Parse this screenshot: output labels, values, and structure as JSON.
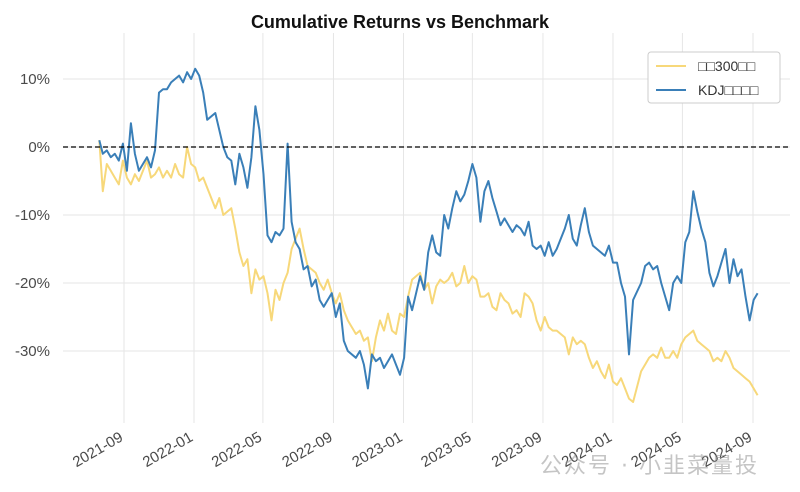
{
  "chart_data": {
    "type": "line",
    "title": "Cumulative Returns vs Benchmark",
    "xlabel": "",
    "ylabel": "",
    "ylim": [
      -40.5,
      16.8
    ],
    "xlim": [
      "2021-07-01",
      "2024-10-15"
    ],
    "grid": true,
    "legend_position": "upper right",
    "x_ticks": [
      "2021-09",
      "2022-01",
      "2022-05",
      "2022-09",
      "2023-01",
      "2023-05",
      "2023-09",
      "2024-01",
      "2024-05",
      "2024-09"
    ],
    "y_ticks": [
      10,
      0,
      -10,
      -20,
      -30
    ],
    "y_tick_labels": [
      "10%",
      "0%",
      "-10%",
      "-20%",
      "-30%"
    ],
    "reference_line": {
      "y": 0,
      "style": "dashed",
      "color": "#000000"
    },
    "series": [
      {
        "name": "□□300□□",
        "color": "#f7d87a",
        "x": [
          "2021-07-20",
          "2021-07-26",
          "2021-08-02",
          "2021-08-09",
          "2021-08-16",
          "2021-08-23",
          "2021-08-30",
          "2021-09-06",
          "2021-09-13",
          "2021-09-20",
          "2021-09-27",
          "2021-10-11",
          "2021-10-18",
          "2021-10-25",
          "2021-11-01",
          "2021-11-08",
          "2021-11-15",
          "2021-11-22",
          "2021-11-29",
          "2021-12-06",
          "2021-12-13",
          "2021-12-20",
          "2021-12-27",
          "2022-01-03",
          "2022-01-10",
          "2022-01-17",
          "2022-01-24",
          "2022-02-07",
          "2022-02-14",
          "2022-02-21",
          "2022-02-28",
          "2022-03-07",
          "2022-03-14",
          "2022-03-21",
          "2022-03-28",
          "2022-04-04",
          "2022-04-11",
          "2022-04-18",
          "2022-04-25",
          "2022-05-02",
          "2022-05-09",
          "2022-05-16",
          "2022-05-23",
          "2022-05-30",
          "2022-06-06",
          "2022-06-13",
          "2022-06-20",
          "2022-06-27",
          "2022-07-04",
          "2022-07-11",
          "2022-07-18",
          "2022-07-25",
          "2022-08-01",
          "2022-08-08",
          "2022-08-15",
          "2022-08-22",
          "2022-08-29",
          "2022-09-05",
          "2022-09-12",
          "2022-09-19",
          "2022-09-26",
          "2022-10-10",
          "2022-10-17",
          "2022-10-24",
          "2022-10-31",
          "2022-11-07",
          "2022-11-14",
          "2022-11-21",
          "2022-11-28",
          "2022-12-05",
          "2022-12-12",
          "2022-12-19",
          "2022-12-26",
          "2023-01-02",
          "2023-01-09",
          "2023-01-16",
          "2023-01-30",
          "2023-02-06",
          "2023-02-13",
          "2023-02-20",
          "2023-02-27",
          "2023-03-06",
          "2023-03-13",
          "2023-03-20",
          "2023-03-27",
          "2023-04-03",
          "2023-04-10",
          "2023-04-17",
          "2023-04-24",
          "2023-05-01",
          "2023-05-08",
          "2023-05-15",
          "2023-05-22",
          "2023-05-29",
          "2023-06-05",
          "2023-06-12",
          "2023-06-19",
          "2023-06-26",
          "2023-07-03",
          "2023-07-10",
          "2023-07-17",
          "2023-07-24",
          "2023-07-31",
          "2023-08-07",
          "2023-08-14",
          "2023-08-21",
          "2023-08-28",
          "2023-09-04",
          "2023-09-11",
          "2023-09-18",
          "2023-09-25",
          "2023-10-09",
          "2023-10-16",
          "2023-10-23",
          "2023-10-30",
          "2023-11-06",
          "2023-11-13",
          "2023-11-20",
          "2023-11-27",
          "2023-12-04",
          "2023-12-11",
          "2023-12-18",
          "2023-12-25",
          "2024-01-01",
          "2024-01-08",
          "2024-01-15",
          "2024-01-22",
          "2024-01-29",
          "2024-02-05",
          "2024-02-19",
          "2024-02-26",
          "2024-03-04",
          "2024-03-11",
          "2024-03-18",
          "2024-03-25",
          "2024-04-01",
          "2024-04-08",
          "2024-04-15",
          "2024-04-22",
          "2024-04-29",
          "2024-05-06",
          "2024-05-13",
          "2024-05-20",
          "2024-05-27",
          "2024-06-03",
          "2024-06-10",
          "2024-06-17",
          "2024-06-24",
          "2024-07-01",
          "2024-07-08",
          "2024-07-15",
          "2024-07-22",
          "2024-07-29",
          "2024-08-05",
          "2024-08-12",
          "2024-08-19",
          "2024-08-26",
          "2024-09-02",
          "2024-09-09"
        ],
        "values": [
          1.0,
          -6.5,
          -2.5,
          -3.5,
          -4.5,
          -5.5,
          -2.0,
          -4.5,
          -5.5,
          -4.0,
          -5.0,
          -2.0,
          -4.5,
          -4.0,
          -3.0,
          -4.5,
          -3.5,
          -4.5,
          -2.5,
          -4.0,
          -4.5,
          0.0,
          -2.5,
          -3.0,
          -5.0,
          -4.5,
          -6.0,
          -9.0,
          -7.5,
          -10.0,
          -9.5,
          -9.0,
          -12.0,
          -15.5,
          -17.5,
          -16.5,
          -21.5,
          -18.0,
          -19.5,
          -19.0,
          -21.5,
          -25.5,
          -21.0,
          -22.5,
          -20.0,
          -18.5,
          -15.0,
          -13.5,
          -12.0,
          -15.0,
          -17.5,
          -18.0,
          -18.5,
          -20.0,
          -21.0,
          -19.5,
          -21.5,
          -23.0,
          -21.5,
          -24.0,
          -25.5,
          -27.5,
          -27.0,
          -28.5,
          -28.0,
          -31.5,
          -28.0,
          -25.5,
          -27.0,
          -24.5,
          -27.0,
          -27.5,
          -24.5,
          -25.0,
          -22.0,
          -19.5,
          -18.5,
          -21.0,
          -20.0,
          -23.0,
          -20.5,
          -19.5,
          -20.0,
          -19.5,
          -18.5,
          -20.5,
          -20.0,
          -17.5,
          -20.0,
          -19.0,
          -19.5,
          -22.0,
          -22.0,
          -21.5,
          -23.5,
          -24.0,
          -21.5,
          -22.5,
          -23.0,
          -24.5,
          -24.0,
          -25.0,
          -21.5,
          -22.0,
          -23.0,
          -25.5,
          -27.0,
          -25.0,
          -26.5,
          -27.0,
          -27.0,
          -28.0,
          -30.5,
          -28.0,
          -29.0,
          -28.5,
          -29.0,
          -31.0,
          -32.5,
          -31.5,
          -33.0,
          -34.0,
          -32.0,
          -34.5,
          -35.0,
          -34.0,
          -35.5,
          -37.0,
          -37.5,
          -33.0,
          -32.0,
          -31.0,
          -30.5,
          -31.0,
          -29.5,
          -31.0,
          -31.0,
          -30.0,
          -31.0,
          -29.0,
          -28.0,
          -27.5,
          -27.0,
          -28.5,
          -29.0,
          -29.5,
          -30.0,
          -31.5,
          -31.0,
          -31.5,
          -30.0,
          -31.0,
          -32.5,
          -33.0,
          -33.5,
          -34.0,
          -34.5,
          -35.5,
          -36.5
        ]
      },
      {
        "name": "KDJ□□□□",
        "color": "#3a7fb8",
        "x": [
          "2021-07-20",
          "2021-07-26",
          "2021-08-02",
          "2021-08-09",
          "2021-08-16",
          "2021-08-23",
          "2021-08-30",
          "2021-09-06",
          "2021-09-13",
          "2021-09-20",
          "2021-09-27",
          "2021-10-11",
          "2021-10-18",
          "2021-10-25",
          "2021-11-01",
          "2021-11-08",
          "2021-11-15",
          "2021-11-22",
          "2021-11-29",
          "2021-12-06",
          "2021-12-13",
          "2021-12-20",
          "2021-12-27",
          "2022-01-03",
          "2022-01-10",
          "2022-01-17",
          "2022-01-24",
          "2022-02-07",
          "2022-02-14",
          "2022-02-21",
          "2022-02-28",
          "2022-03-07",
          "2022-03-14",
          "2022-03-21",
          "2022-03-28",
          "2022-04-04",
          "2022-04-11",
          "2022-04-18",
          "2022-04-25",
          "2022-05-02",
          "2022-05-09",
          "2022-05-16",
          "2022-05-23",
          "2022-05-30",
          "2022-06-06",
          "2022-06-13",
          "2022-06-20",
          "2022-06-27",
          "2022-07-04",
          "2022-07-11",
          "2022-07-18",
          "2022-07-25",
          "2022-08-01",
          "2022-08-08",
          "2022-08-15",
          "2022-08-22",
          "2022-08-29",
          "2022-09-05",
          "2022-09-12",
          "2022-09-19",
          "2022-09-26",
          "2022-10-10",
          "2022-10-17",
          "2022-10-24",
          "2022-10-31",
          "2022-11-07",
          "2022-11-14",
          "2022-11-21",
          "2022-11-28",
          "2022-12-05",
          "2022-12-12",
          "2022-12-19",
          "2022-12-26",
          "2023-01-02",
          "2023-01-09",
          "2023-01-16",
          "2023-01-30",
          "2023-02-06",
          "2023-02-13",
          "2023-02-20",
          "2023-02-27",
          "2023-03-06",
          "2023-03-13",
          "2023-03-20",
          "2023-03-27",
          "2023-04-03",
          "2023-04-10",
          "2023-04-17",
          "2023-04-24",
          "2023-05-01",
          "2023-05-08",
          "2023-05-15",
          "2023-05-22",
          "2023-05-29",
          "2023-06-05",
          "2023-06-12",
          "2023-06-19",
          "2023-06-26",
          "2023-07-03",
          "2023-07-10",
          "2023-07-17",
          "2023-07-24",
          "2023-07-31",
          "2023-08-07",
          "2023-08-14",
          "2023-08-21",
          "2023-08-28",
          "2023-09-04",
          "2023-09-11",
          "2023-09-18",
          "2023-09-25",
          "2023-10-09",
          "2023-10-16",
          "2023-10-23",
          "2023-10-30",
          "2023-11-06",
          "2023-11-13",
          "2023-11-20",
          "2023-11-27",
          "2023-12-04",
          "2023-12-11",
          "2023-12-18",
          "2023-12-25",
          "2024-01-01",
          "2024-01-08",
          "2024-01-15",
          "2024-01-22",
          "2024-01-29",
          "2024-02-05",
          "2024-02-19",
          "2024-02-26",
          "2024-03-04",
          "2024-03-11",
          "2024-03-18",
          "2024-03-25",
          "2024-04-01",
          "2024-04-08",
          "2024-04-15",
          "2024-04-22",
          "2024-04-29",
          "2024-05-06",
          "2024-05-13",
          "2024-05-20",
          "2024-05-27",
          "2024-06-03",
          "2024-06-10",
          "2024-06-17",
          "2024-06-24",
          "2024-07-01",
          "2024-07-08",
          "2024-07-15",
          "2024-07-22",
          "2024-07-29",
          "2024-08-05",
          "2024-08-12",
          "2024-08-19",
          "2024-08-26",
          "2024-09-02",
          "2024-09-09"
        ],
        "values": [
          1.0,
          -1.0,
          -0.5,
          -1.5,
          -1.0,
          -2.0,
          0.5,
          -3.5,
          3.5,
          -1.0,
          -3.5,
          -1.5,
          -3.0,
          -0.5,
          8.0,
          8.5,
          8.5,
          9.5,
          10.0,
          10.5,
          9.5,
          11.0,
          10.0,
          11.5,
          10.5,
          8.0,
          4.0,
          5.0,
          2.5,
          0.0,
          -1.5,
          -2.0,
          -5.5,
          -1.0,
          -3.0,
          -6.0,
          -1.5,
          6.0,
          2.5,
          -4.0,
          -13.0,
          -14.0,
          -12.5,
          -13.0,
          -12.0,
          0.5,
          -11.0,
          -14.0,
          -15.0,
          -18.0,
          -17.5,
          -20.5,
          -19.5,
          -22.5,
          -23.5,
          -22.5,
          -21.5,
          -25.0,
          -23.0,
          -28.5,
          -30.0,
          -31.0,
          -30.0,
          -32.0,
          -35.5,
          -30.5,
          -31.5,
          -31.0,
          -32.5,
          -31.5,
          -30.5,
          -32.0,
          -33.5,
          -31.0,
          -22.0,
          -24.0,
          -19.0,
          -21.0,
          -15.5,
          -13.0,
          -15.5,
          -16.0,
          -10.0,
          -12.0,
          -9.0,
          -6.5,
          -8.0,
          -7.0,
          -5.0,
          -2.5,
          -4.5,
          -11.0,
          -6.5,
          -5.0,
          -7.5,
          -9.5,
          -11.5,
          -10.5,
          -11.5,
          -12.5,
          -11.5,
          -12.0,
          -13.0,
          -11.0,
          -14.5,
          -15.0,
          -14.5,
          -16.0,
          -14.0,
          -16.0,
          -15.0,
          -12.0,
          -10.0,
          -13.5,
          -14.5,
          -11.5,
          -9.0,
          -12.5,
          -14.5,
          -15.0,
          -15.5,
          -16.0,
          -14.5,
          -17.0,
          -17.0,
          -20.0,
          -22.0,
          -30.5,
          -22.5,
          -20.0,
          -17.5,
          -17.0,
          -18.0,
          -17.5,
          -20.0,
          -22.0,
          -24.0,
          -20.0,
          -19.0,
          -20.0,
          -14.0,
          -12.5,
          -6.5,
          -9.5,
          -12.0,
          -14.0,
          -18.5,
          -20.5,
          -19.0,
          -17.0,
          -15.0,
          -20.0,
          -16.5,
          -19.0,
          -18.0,
          -22.0,
          -25.5,
          -22.5,
          -21.5
        ]
      }
    ]
  },
  "legend": {
    "items": [
      {
        "label": "□□300□□",
        "color": "#f7d87a"
      },
      {
        "label": "KDJ□□□□",
        "color": "#3a7fb8"
      }
    ]
  },
  "watermark": "公众号 · 小韭菜量投"
}
